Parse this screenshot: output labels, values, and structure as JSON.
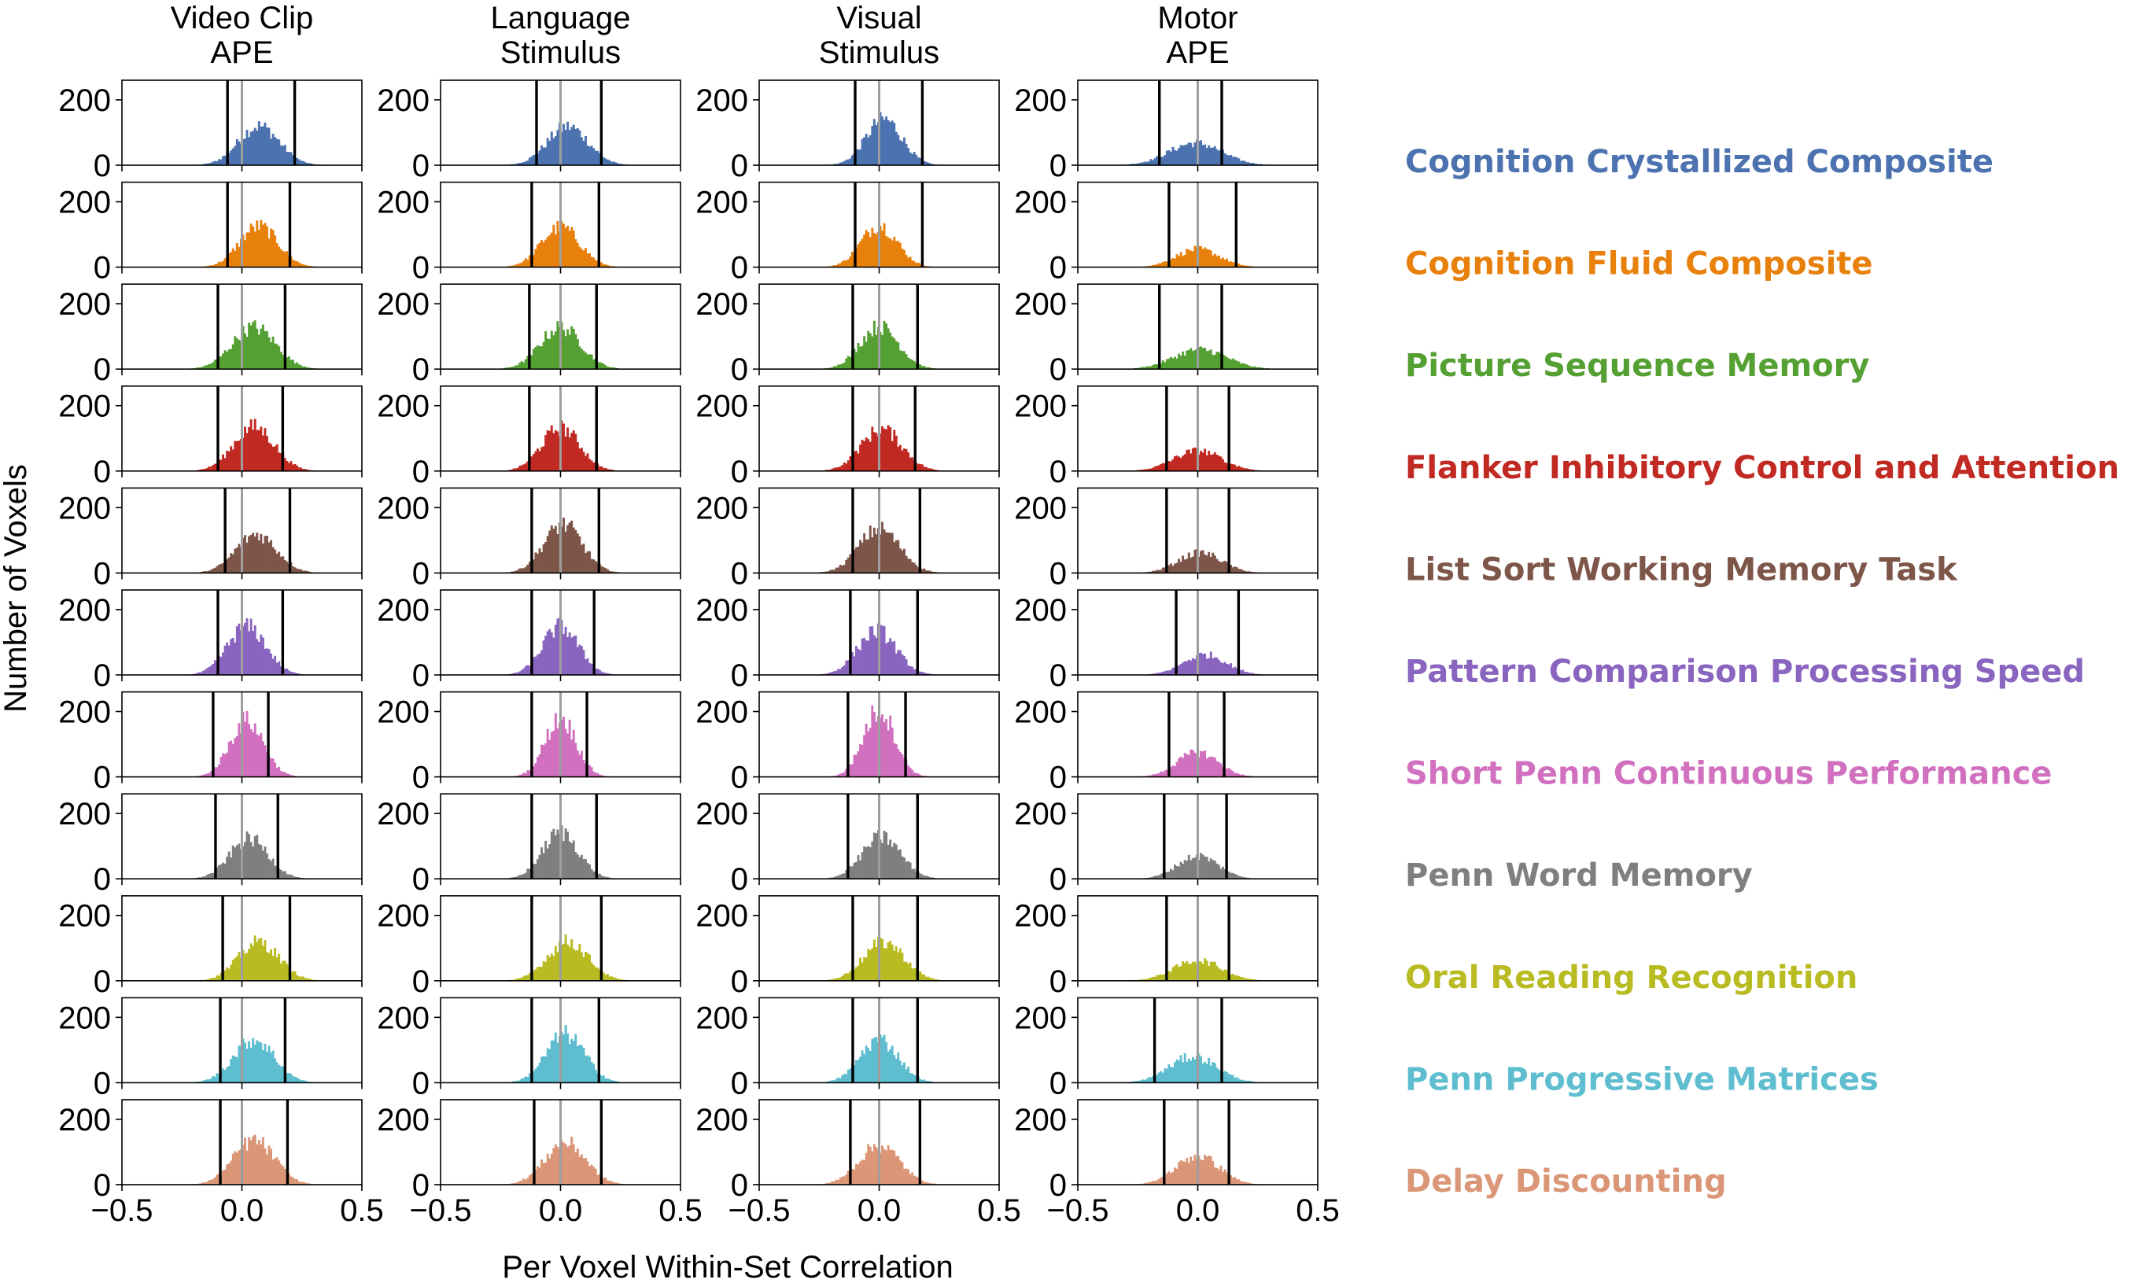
{
  "chart_data": {
    "type": "histogram-grid",
    "xlabel": "Per Voxel Within-Set Correlation",
    "ylabel": "Number of Voxels",
    "xlim": [
      -0.5,
      0.5
    ],
    "ylim": [
      0,
      260
    ],
    "x_ticks": [
      -0.5,
      0.0,
      0.5
    ],
    "x_tick_labels": [
      "−0.5",
      "0.0",
      "0.5"
    ],
    "y_ticks": [
      0,
      200
    ],
    "y_tick_labels": [
      "0",
      "200"
    ],
    "columns": [
      {
        "title_line1": "Video Clip",
        "title_line2": "APE"
      },
      {
        "title_line1": "Language",
        "title_line2": "Stimulus"
      },
      {
        "title_line1": "Visual",
        "title_line2": "Stimulus"
      },
      {
        "title_line1": "Motor",
        "title_line2": "APE"
      }
    ],
    "rows": [
      {
        "name": "Cognition Crystallized Composite",
        "color": "#4c72b0",
        "panels": [
          {
            "mean": 0.07,
            "sd": 0.085,
            "peak": 120,
            "lo": -0.06,
            "hi": 0.22
          },
          {
            "mean": 0.03,
            "sd": 0.085,
            "peak": 118,
            "lo": -0.1,
            "hi": 0.17
          },
          {
            "mean": 0.02,
            "sd": 0.075,
            "peak": 140,
            "lo": -0.1,
            "hi": 0.18
          },
          {
            "mean": -0.01,
            "sd": 0.11,
            "peak": 68,
            "lo": -0.16,
            "hi": 0.1
          }
        ]
      },
      {
        "name": "Cognition Fluid Composite",
        "color": "#e8800c",
        "panels": [
          {
            "mean": 0.07,
            "sd": 0.08,
            "peak": 125,
            "lo": -0.06,
            "hi": 0.2
          },
          {
            "mean": 0.0,
            "sd": 0.08,
            "peak": 122,
            "lo": -0.12,
            "hi": 0.16
          },
          {
            "mean": 0.0,
            "sd": 0.075,
            "peak": 128,
            "lo": -0.1,
            "hi": 0.18
          },
          {
            "mean": 0.0,
            "sd": 0.09,
            "peak": 55,
            "lo": -0.12,
            "hi": 0.16
          }
        ]
      },
      {
        "name": "Picture Sequence Memory",
        "color": "#55a032",
        "panels": [
          {
            "mean": 0.05,
            "sd": 0.09,
            "peak": 128,
            "lo": -0.1,
            "hi": 0.18
          },
          {
            "mean": 0.0,
            "sd": 0.085,
            "peak": 128,
            "lo": -0.13,
            "hi": 0.15
          },
          {
            "mean": 0.0,
            "sd": 0.08,
            "peak": 130,
            "lo": -0.11,
            "hi": 0.16
          },
          {
            "mean": 0.01,
            "sd": 0.11,
            "peak": 60,
            "lo": -0.16,
            "hi": 0.1
          }
        ]
      },
      {
        "name": "Flanker Inhibitory Control and Attention",
        "color": "#c12a23",
        "panels": [
          {
            "mean": 0.05,
            "sd": 0.085,
            "peak": 135,
            "lo": -0.1,
            "hi": 0.17
          },
          {
            "mean": 0.0,
            "sd": 0.08,
            "peak": 132,
            "lo": -0.13,
            "hi": 0.15
          },
          {
            "mean": 0.01,
            "sd": 0.085,
            "peak": 128,
            "lo": -0.11,
            "hi": 0.15
          },
          {
            "mean": 0.0,
            "sd": 0.1,
            "peak": 62,
            "lo": -0.13,
            "hi": 0.13
          }
        ]
      },
      {
        "name": "List Sort Working Memory Task",
        "color": "#7d5549",
        "panels": [
          {
            "mean": 0.06,
            "sd": 0.085,
            "peak": 118,
            "lo": -0.07,
            "hi": 0.2
          },
          {
            "mean": 0.01,
            "sd": 0.08,
            "peak": 148,
            "lo": -0.12,
            "hi": 0.16
          },
          {
            "mean": 0.0,
            "sd": 0.085,
            "peak": 135,
            "lo": -0.11,
            "hi": 0.17
          },
          {
            "mean": 0.01,
            "sd": 0.09,
            "peak": 62,
            "lo": -0.13,
            "hi": 0.13
          }
        ]
      },
      {
        "name": "Pattern Comparison Processing Speed",
        "color": "#8a65bf",
        "panels": [
          {
            "mean": 0.02,
            "sd": 0.08,
            "peak": 148,
            "lo": -0.1,
            "hi": 0.17
          },
          {
            "mean": 0.0,
            "sd": 0.075,
            "peak": 148,
            "lo": -0.12,
            "hi": 0.14
          },
          {
            "mean": -0.01,
            "sd": 0.08,
            "peak": 135,
            "lo": -0.12,
            "hi": 0.16
          },
          {
            "mean": 0.03,
            "sd": 0.09,
            "peak": 62,
            "lo": -0.09,
            "hi": 0.17
          }
        ]
      },
      {
        "name": "Short Penn Continuous Performance",
        "color": "#d270c0",
        "panels": [
          {
            "mean": 0.02,
            "sd": 0.07,
            "peak": 172,
            "lo": -0.12,
            "hi": 0.11
          },
          {
            "mean": 0.0,
            "sd": 0.065,
            "peak": 178,
            "lo": -0.12,
            "hi": 0.11
          },
          {
            "mean": 0.0,
            "sd": 0.065,
            "peak": 205,
            "lo": -0.13,
            "hi": 0.11
          },
          {
            "mean": 0.0,
            "sd": 0.085,
            "peak": 75,
            "lo": -0.12,
            "hi": 0.11
          }
        ]
      },
      {
        "name": "Penn Word Memory",
        "color": "#7f7f7f",
        "panels": [
          {
            "mean": 0.03,
            "sd": 0.08,
            "peak": 122,
            "lo": -0.11,
            "hi": 0.15
          },
          {
            "mean": 0.0,
            "sd": 0.075,
            "peak": 142,
            "lo": -0.12,
            "hi": 0.15
          },
          {
            "mean": 0.01,
            "sd": 0.08,
            "peak": 128,
            "lo": -0.13,
            "hi": 0.16
          },
          {
            "mean": 0.0,
            "sd": 0.085,
            "peak": 70,
            "lo": -0.14,
            "hi": 0.12
          }
        ]
      },
      {
        "name": "Oral Reading Recognition",
        "color": "#b9bb22",
        "panels": [
          {
            "mean": 0.07,
            "sd": 0.085,
            "peak": 118,
            "lo": -0.08,
            "hi": 0.2
          },
          {
            "mean": 0.03,
            "sd": 0.085,
            "peak": 120,
            "lo": -0.12,
            "hi": 0.17
          },
          {
            "mean": 0.02,
            "sd": 0.085,
            "peak": 118,
            "lo": -0.11,
            "hi": 0.16
          },
          {
            "mean": 0.0,
            "sd": 0.1,
            "peak": 62,
            "lo": -0.13,
            "hi": 0.13
          }
        ]
      },
      {
        "name": "Penn Progressive Matrices",
        "color": "#5fbdd0",
        "panels": [
          {
            "mean": 0.05,
            "sd": 0.085,
            "peak": 132,
            "lo": -0.09,
            "hi": 0.18
          },
          {
            "mean": 0.02,
            "sd": 0.08,
            "peak": 148,
            "lo": -0.12,
            "hi": 0.16
          },
          {
            "mean": 0.0,
            "sd": 0.08,
            "peak": 132,
            "lo": -0.11,
            "hi": 0.16
          },
          {
            "mean": -0.02,
            "sd": 0.1,
            "peak": 80,
            "lo": -0.18,
            "hi": 0.1
          }
        ]
      },
      {
        "name": "Delay Discounting",
        "color": "#da9676",
        "panels": [
          {
            "mean": 0.05,
            "sd": 0.085,
            "peak": 135,
            "lo": -0.09,
            "hi": 0.19
          },
          {
            "mean": 0.02,
            "sd": 0.085,
            "peak": 128,
            "lo": -0.11,
            "hi": 0.17
          },
          {
            "mean": 0.0,
            "sd": 0.085,
            "peak": 120,
            "lo": -0.12,
            "hi": 0.17
          },
          {
            "mean": 0.0,
            "sd": 0.09,
            "peak": 88,
            "lo": -0.14,
            "hi": 0.13
          }
        ]
      }
    ]
  }
}
